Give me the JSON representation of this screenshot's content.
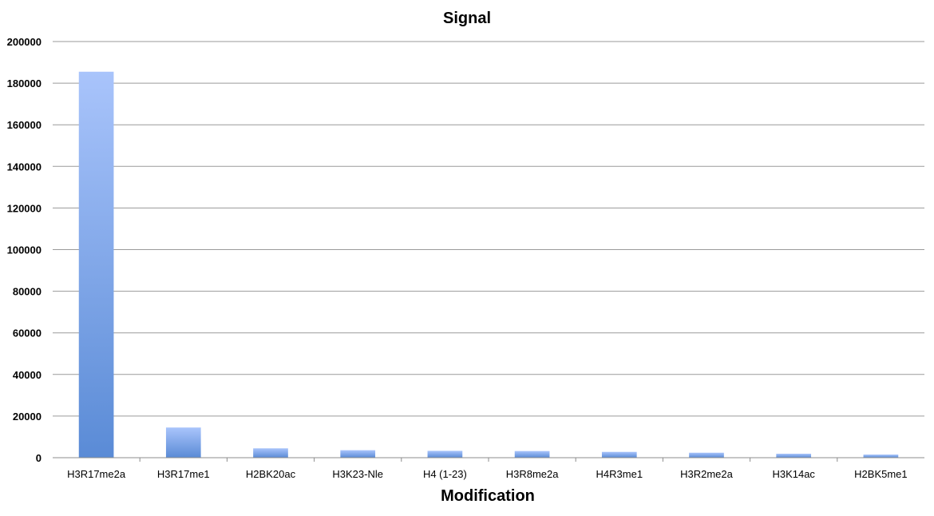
{
  "chart_data": {
    "type": "bar",
    "title": "Signal",
    "xlabel": "Modification",
    "ylabel": "",
    "ylim": [
      0,
      200000
    ],
    "ytick_step": 20000,
    "grid": true,
    "legend": "none",
    "categories": [
      "H3R17me2a",
      "H3R17me1",
      "H2BK20ac",
      "H3K23-Nle",
      "H4 (1-23)",
      "H3R8me2a",
      "H4R3me1",
      "H3R2me2a",
      "H3K14ac",
      "H2BK5me1"
    ],
    "values": [
      185500,
      14500,
      4500,
      3600,
      3300,
      3200,
      2800,
      2400,
      1900,
      1500
    ],
    "colors": {
      "bar_top": "#a9c4fb",
      "bar_bottom": "#5a8bd6",
      "grid": "#9a9a9a"
    }
  }
}
